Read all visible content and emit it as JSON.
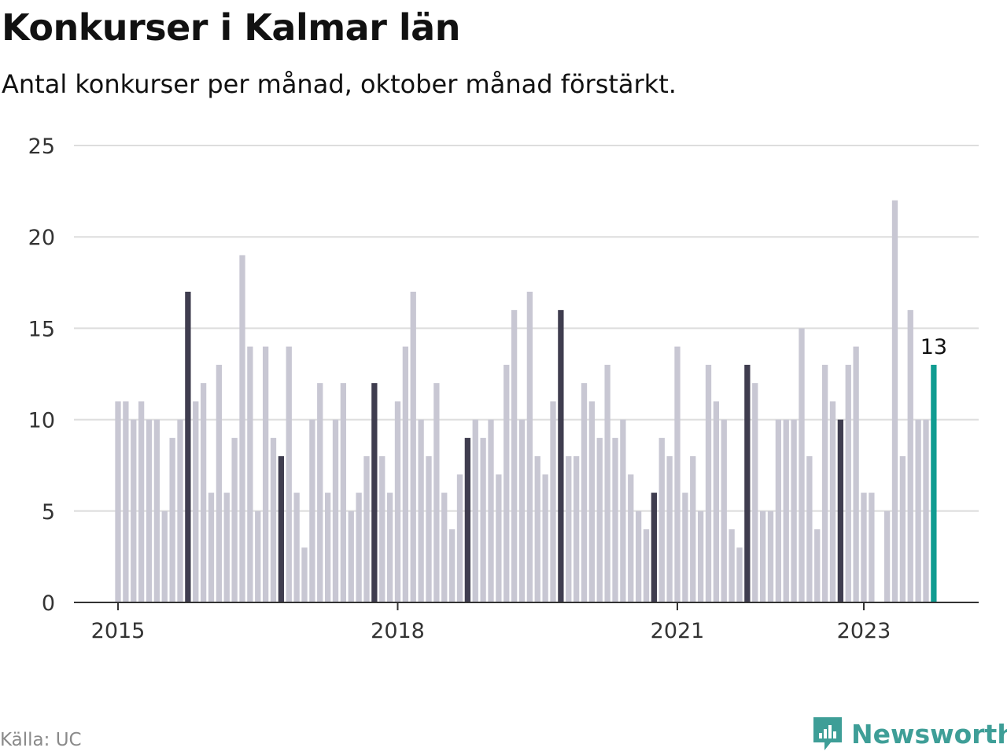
{
  "title": "Konkurser i Kalmar län",
  "subtitle": "Antal konkurser per månad, oktober månad förstärkt.",
  "source": "Källa: UC",
  "brand": "Newsworthy",
  "colors": {
    "bar": "#c8c7d3",
    "highlight": "#3f3d4f",
    "latest": "#109c91",
    "grid": "#dddddd",
    "axis": "#333333",
    "brand": "#3e9e97"
  },
  "chart_data": {
    "type": "bar",
    "ylim": [
      0,
      25
    ],
    "yticks": [
      "0",
      "5",
      "10",
      "15",
      "20",
      "25"
    ],
    "xticks": [
      {
        "label": "2015",
        "index": 0
      },
      {
        "label": "2018",
        "index": 36
      },
      {
        "label": "2021",
        "index": 72
      },
      {
        "label": "2023",
        "index": 96
      }
    ],
    "start": "2015-01",
    "highlight_month": 10,
    "values": [
      11,
      11,
      10,
      11,
      10,
      10,
      5,
      9,
      10,
      17,
      11,
      12,
      6,
      13,
      6,
      9,
      19,
      14,
      5,
      14,
      9,
      8,
      14,
      6,
      3,
      10,
      12,
      6,
      10,
      12,
      5,
      6,
      8,
      12,
      8,
      6,
      11,
      14,
      17,
      10,
      8,
      12,
      6,
      4,
      7,
      9,
      10,
      9,
      10,
      7,
      13,
      16,
      10,
      17,
      8,
      7,
      11,
      16,
      8,
      8,
      12,
      11,
      9,
      13,
      9,
      10,
      7,
      5,
      4,
      6,
      9,
      8,
      14,
      6,
      8,
      5,
      13,
      11,
      10,
      4,
      3,
      13,
      12,
      5,
      5,
      10,
      10,
      10,
      15,
      8,
      4,
      13,
      11,
      10,
      13,
      14,
      6,
      6,
      0,
      5,
      22,
      8,
      16,
      10,
      10,
      13
    ],
    "last_value_label": "13"
  }
}
